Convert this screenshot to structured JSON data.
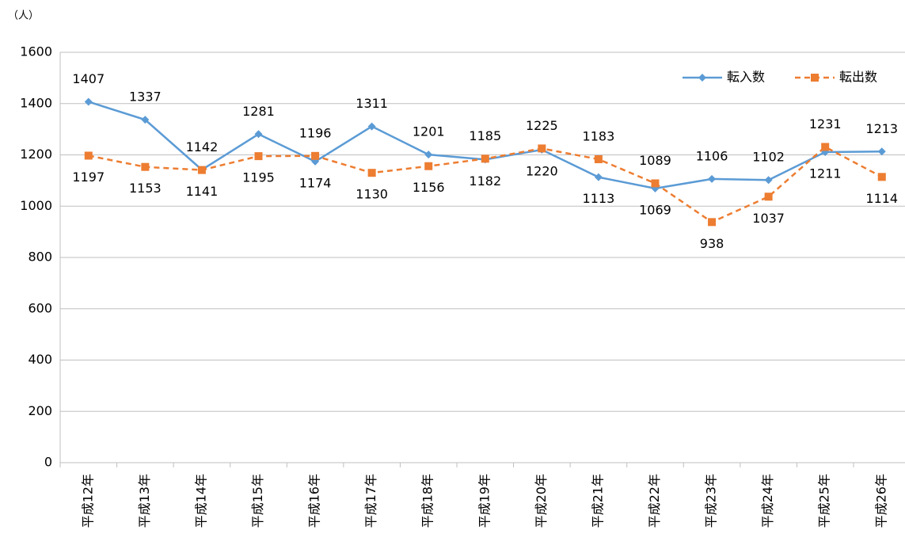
{
  "chart_data": {
    "type": "line",
    "y_label": "（人）",
    "categories": [
      "平成12年",
      "平成13年",
      "平成14年",
      "平成15年",
      "平成16年",
      "平成17年",
      "平成18年",
      "平成19年",
      "平成20年",
      "平成21年",
      "平成22年",
      "平成23年",
      "平成24年",
      "平成25年",
      "平成26年"
    ],
    "series": [
      {
        "name": "転入数",
        "color": "#5b9bd5",
        "marker": "diamond",
        "dash": false,
        "values": [
          1407,
          1337,
          1142,
          1281,
          1174,
          1311,
          1201,
          1182,
          1220,
          1113,
          1069,
          1106,
          1102,
          1211,
          1213
        ]
      },
      {
        "name": "転出数",
        "color": "#ed7d31",
        "marker": "square",
        "dash": true,
        "values": [
          1197,
          1153,
          1141,
          1195,
          1196,
          1130,
          1156,
          1185,
          1225,
          1183,
          1089,
          938,
          1037,
          1231,
          1114
        ]
      }
    ],
    "ylim": [
      0,
      1600
    ],
    "yticks": [
      0,
      200,
      400,
      600,
      800,
      1000,
      1200,
      1400,
      1600
    ],
    "grid": true,
    "legend": "top-right"
  }
}
